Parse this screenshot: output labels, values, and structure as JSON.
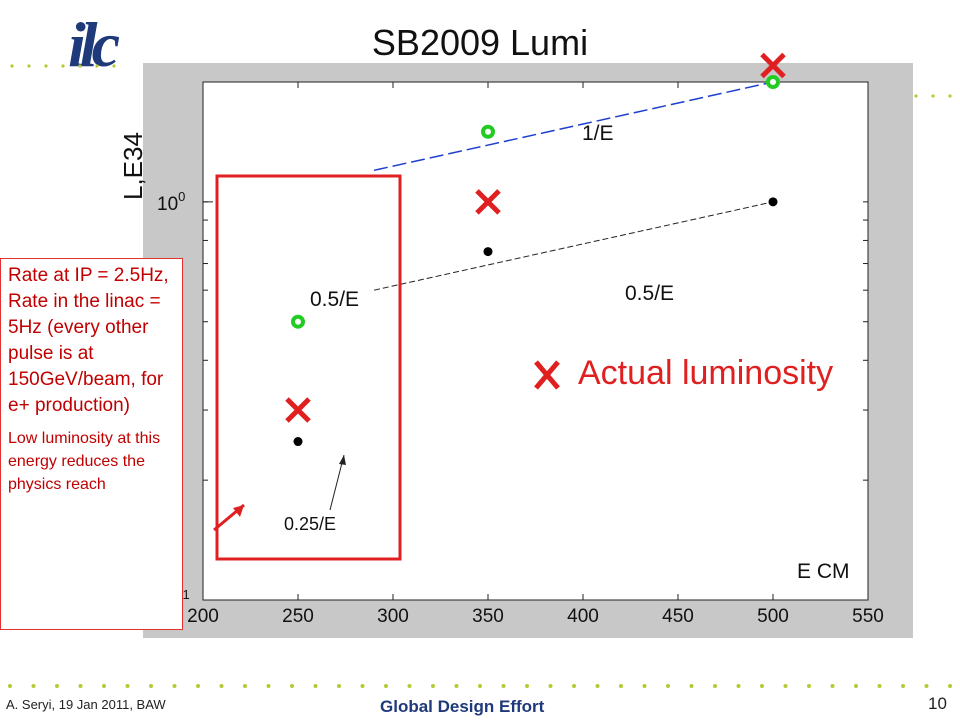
{
  "slide": {
    "title": "SB2009 Lumi",
    "logo": "ilc",
    "footer_left": "A. Seryi, 19 Jan 2011, BAW",
    "footer_center": "Global Design Effort",
    "page_number": "10"
  },
  "note": {
    "main": "Rate at IP = 2.5Hz, Rate in the linac = 5Hz (every other pulse is at 150GeV/beam, for e+ production)",
    "sub": "Low luminosity at this energy reduces the physics reach"
  },
  "annotations": {
    "one_over_e": "1/E",
    "half_over_e_right": "0.5/E",
    "half_over_e_box": "0.5/E",
    "quarter_over_e": "0.25/E",
    "actual_luminosity": "Actual luminosity"
  },
  "colors": {
    "accent": "#e02020",
    "series_blue": "#1f3fd0",
    "series_green": "#22cc22",
    "logo_blue": "#1f3a7a"
  },
  "chart_data": {
    "type": "scatter",
    "title": "SB2009 Lumi",
    "xlabel": "E CM",
    "ylabel": "L,E34",
    "xlim": [
      200,
      550
    ],
    "ylim": [
      0.1,
      2.0
    ],
    "yscale": "log",
    "x_ticks": [
      200,
      250,
      300,
      350,
      400,
      450,
      500,
      550
    ],
    "y_ticks": [
      {
        "value": 0.1,
        "base": "10",
        "exp": "-1"
      },
      {
        "value": 1.0,
        "base": "10",
        "exp": "0"
      }
    ],
    "grid": false,
    "series": [
      {
        "name": "",
        "marker": "green-circle",
        "x": [
          250,
          350,
          500
        ],
        "y": [
          0.5,
          1.5,
          2.0
        ]
      },
      {
        "name": "",
        "marker": "black-dot",
        "x": [
          250,
          350,
          500
        ],
        "y": [
          0.25,
          0.75,
          1.0
        ]
      },
      {
        "name": "Actual luminosity",
        "marker": "red-x",
        "x": [
          250,
          350,
          500
        ],
        "y": [
          0.3,
          1.0,
          2.2
        ]
      }
    ],
    "lines": [
      {
        "label": "1/E",
        "style": "dashed-blue",
        "from_x": 290,
        "to_x": 500,
        "y_from": 1.2,
        "y_to": 2.0
      },
      {
        "label": "0.5/E",
        "style": "dashed-black",
        "from_x": 290,
        "to_x": 500,
        "y_from": 0.6,
        "y_to": 1.0
      }
    ]
  }
}
